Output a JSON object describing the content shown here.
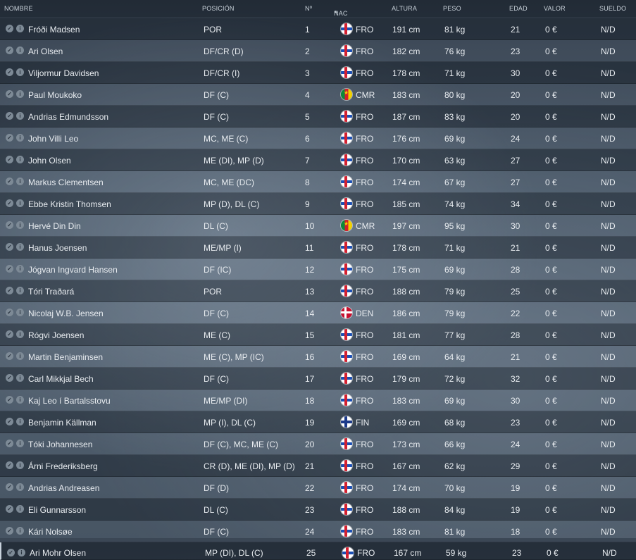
{
  "columns": {
    "name": "NOMBRE",
    "position": "POSICIÓN",
    "number": "Nº",
    "nat": "NAC",
    "height": "ALTURA",
    "weight": "PESO",
    "age": "EDAD",
    "value": "VALOR",
    "wage": "SUELDO"
  },
  "sort": {
    "column": "nat",
    "direction": "ascending"
  },
  "players": [
    {
      "name": "Fróði Madsen",
      "position": "POR",
      "number": "1",
      "nat": "FRO",
      "flag": "fro",
      "height": "191 cm",
      "weight": "81 kg",
      "age": "21",
      "value": "0 €",
      "wage": "N/D"
    },
    {
      "name": "Ari Olsen",
      "position": "DF/CR (D)",
      "number": "2",
      "nat": "FRO",
      "flag": "fro",
      "height": "182 cm",
      "weight": "76 kg",
      "age": "23",
      "value": "0 €",
      "wage": "N/D"
    },
    {
      "name": "Viljormur Davidsen",
      "position": "DF/CR (I)",
      "number": "3",
      "nat": "FRO",
      "flag": "fro",
      "height": "178 cm",
      "weight": "71 kg",
      "age": "30",
      "value": "0 €",
      "wage": "N/D"
    },
    {
      "name": "Paul Moukoko",
      "position": "DF (C)",
      "number": "4",
      "nat": "CMR",
      "flag": "cmr",
      "height": "183 cm",
      "weight": "80 kg",
      "age": "20",
      "value": "0 €",
      "wage": "N/D"
    },
    {
      "name": "Andrias Edmundsson",
      "position": "DF (C)",
      "number": "5",
      "nat": "FRO",
      "flag": "fro",
      "height": "187 cm",
      "weight": "83 kg",
      "age": "20",
      "value": "0 €",
      "wage": "N/D"
    },
    {
      "name": "John Villi Leo",
      "position": "MC, ME (C)",
      "number": "6",
      "nat": "FRO",
      "flag": "fro",
      "height": "176 cm",
      "weight": "69 kg",
      "age": "24",
      "value": "0 €",
      "wage": "N/D"
    },
    {
      "name": "John Olsen",
      "position": "ME (DI), MP (D)",
      "number": "7",
      "nat": "FRO",
      "flag": "fro",
      "height": "170 cm",
      "weight": "63 kg",
      "age": "27",
      "value": "0 €",
      "wage": "N/D"
    },
    {
      "name": "Markus Clementsen",
      "position": "MC, ME (DC)",
      "number": "8",
      "nat": "FRO",
      "flag": "fro",
      "height": "174 cm",
      "weight": "67 kg",
      "age": "27",
      "value": "0 €",
      "wage": "N/D"
    },
    {
      "name": "Ebbe Kristin Thomsen",
      "position": "MP (D), DL (C)",
      "number": "9",
      "nat": "FRO",
      "flag": "fro",
      "height": "185 cm",
      "weight": "74 kg",
      "age": "34",
      "value": "0 €",
      "wage": "N/D"
    },
    {
      "name": "Hervé Din Din",
      "position": "DL (C)",
      "number": "10",
      "nat": "CMR",
      "flag": "cmr",
      "height": "197 cm",
      "weight": "95 kg",
      "age": "30",
      "value": "0 €",
      "wage": "N/D"
    },
    {
      "name": "Hanus Joensen",
      "position": "ME/MP (I)",
      "number": "11",
      "nat": "FRO",
      "flag": "fro",
      "height": "178 cm",
      "weight": "71 kg",
      "age": "21",
      "value": "0 €",
      "wage": "N/D"
    },
    {
      "name": "Jógvan Ingvard Hansen",
      "position": "DF (IC)",
      "number": "12",
      "nat": "FRO",
      "flag": "fro",
      "height": "175 cm",
      "weight": "69 kg",
      "age": "28",
      "value": "0 €",
      "wage": "N/D"
    },
    {
      "name": "Tóri Traðará",
      "position": "POR",
      "number": "13",
      "nat": "FRO",
      "flag": "fro",
      "height": "188 cm",
      "weight": "79 kg",
      "age": "25",
      "value": "0 €",
      "wage": "N/D"
    },
    {
      "name": "Nicolaj W.B. Jensen",
      "position": "DF (C)",
      "number": "14",
      "nat": "DEN",
      "flag": "den",
      "height": "186 cm",
      "weight": "79 kg",
      "age": "22",
      "value": "0 €",
      "wage": "N/D"
    },
    {
      "name": "Rógvi Joensen",
      "position": "ME (C)",
      "number": "15",
      "nat": "FRO",
      "flag": "fro",
      "height": "181 cm",
      "weight": "77 kg",
      "age": "28",
      "value": "0 €",
      "wage": "N/D"
    },
    {
      "name": "Martin Benjaminsen",
      "position": "ME (C), MP (IC)",
      "number": "16",
      "nat": "FRO",
      "flag": "fro",
      "height": "169 cm",
      "weight": "64 kg",
      "age": "21",
      "value": "0 €",
      "wage": "N/D"
    },
    {
      "name": "Carl Mikkjal Bech",
      "position": "DF (C)",
      "number": "17",
      "nat": "FRO",
      "flag": "fro",
      "height": "179 cm",
      "weight": "72 kg",
      "age": "32",
      "value": "0 €",
      "wage": "N/D"
    },
    {
      "name": "Kaj Leo í Bartalsstovu",
      "position": "ME/MP (DI)",
      "number": "18",
      "nat": "FRO",
      "flag": "fro",
      "height": "183 cm",
      "weight": "69 kg",
      "age": "30",
      "value": "0 €",
      "wage": "N/D"
    },
    {
      "name": "Benjamin Källman",
      "position": "MP (I), DL (C)",
      "number": "19",
      "nat": "FIN",
      "flag": "fin",
      "height": "169 cm",
      "weight": "68 kg",
      "age": "23",
      "value": "0 €",
      "wage": "N/D"
    },
    {
      "name": "Tóki Johannesen",
      "position": "DF (C), MC, ME (C)",
      "number": "20",
      "nat": "FRO",
      "flag": "fro",
      "height": "173 cm",
      "weight": "66 kg",
      "age": "24",
      "value": "0 €",
      "wage": "N/D"
    },
    {
      "name": "Árni Frederiksberg",
      "position": "CR (D), ME (DI), MP (D)",
      "number": "21",
      "nat": "FRO",
      "flag": "fro",
      "height": "167 cm",
      "weight": "62 kg",
      "age": "29",
      "value": "0 €",
      "wage": "N/D"
    },
    {
      "name": "Andrias Andreasen",
      "position": "DF (D)",
      "number": "22",
      "nat": "FRO",
      "flag": "fro",
      "height": "174 cm",
      "weight": "70 kg",
      "age": "19",
      "value": "0 €",
      "wage": "N/D"
    },
    {
      "name": "Eli Gunnarsson",
      "position": "DL (C)",
      "number": "23",
      "nat": "FRO",
      "flag": "fro",
      "height": "188 cm",
      "weight": "84 kg",
      "age": "19",
      "value": "0 €",
      "wage": "N/D"
    },
    {
      "name": "Kári Nolsøe",
      "position": "DF (C)",
      "number": "24",
      "nat": "FRO",
      "flag": "fro",
      "height": "183 cm",
      "weight": "81 kg",
      "age": "18",
      "value": "0 €",
      "wage": "N/D"
    },
    {
      "name": "Ari Mohr Olsen",
      "position": "MP (DI), DL (C)",
      "number": "25",
      "nat": "FRO",
      "flag": "fro",
      "height": "167 cm",
      "weight": "59 kg",
      "age": "23",
      "value": "0 €",
      "wage": "N/D"
    }
  ]
}
